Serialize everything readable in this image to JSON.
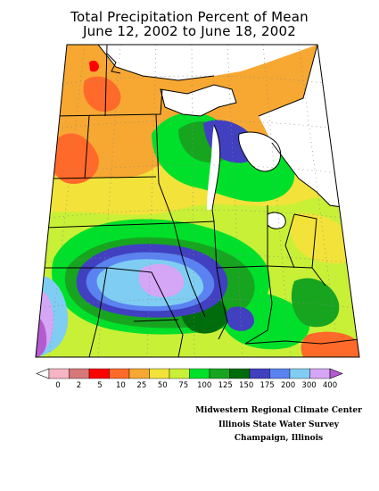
{
  "title": {
    "line1": "Total Precipitation Percent of Mean",
    "line2": "June 12, 2002 to June 18, 2002"
  },
  "legend": {
    "ticks": [
      "0",
      "2",
      "5",
      "10",
      "25",
      "50",
      "75",
      "100",
      "125",
      "150",
      "175",
      "200",
      "300",
      "400"
    ],
    "colors": [
      "#ffffff",
      "#f7b4c3",
      "#d77878",
      "#ff0000",
      "#ff6a2a",
      "#f7a832",
      "#f2e23a",
      "#c8f037",
      "#00e02a",
      "#17a520",
      "#006d0d",
      "#4040c0",
      "#5a82f0",
      "#7fcdf2",
      "#d4a6f5",
      "#b55bd1"
    ]
  },
  "credits": {
    "line1": "Midwestern Regional Climate Center",
    "line2": "Illinois State Water Survey",
    "line3": "Champaign, Illinois"
  },
  "colors": {
    "water": "#ffffff",
    "border": "#000000",
    "grid": "#888888"
  }
}
